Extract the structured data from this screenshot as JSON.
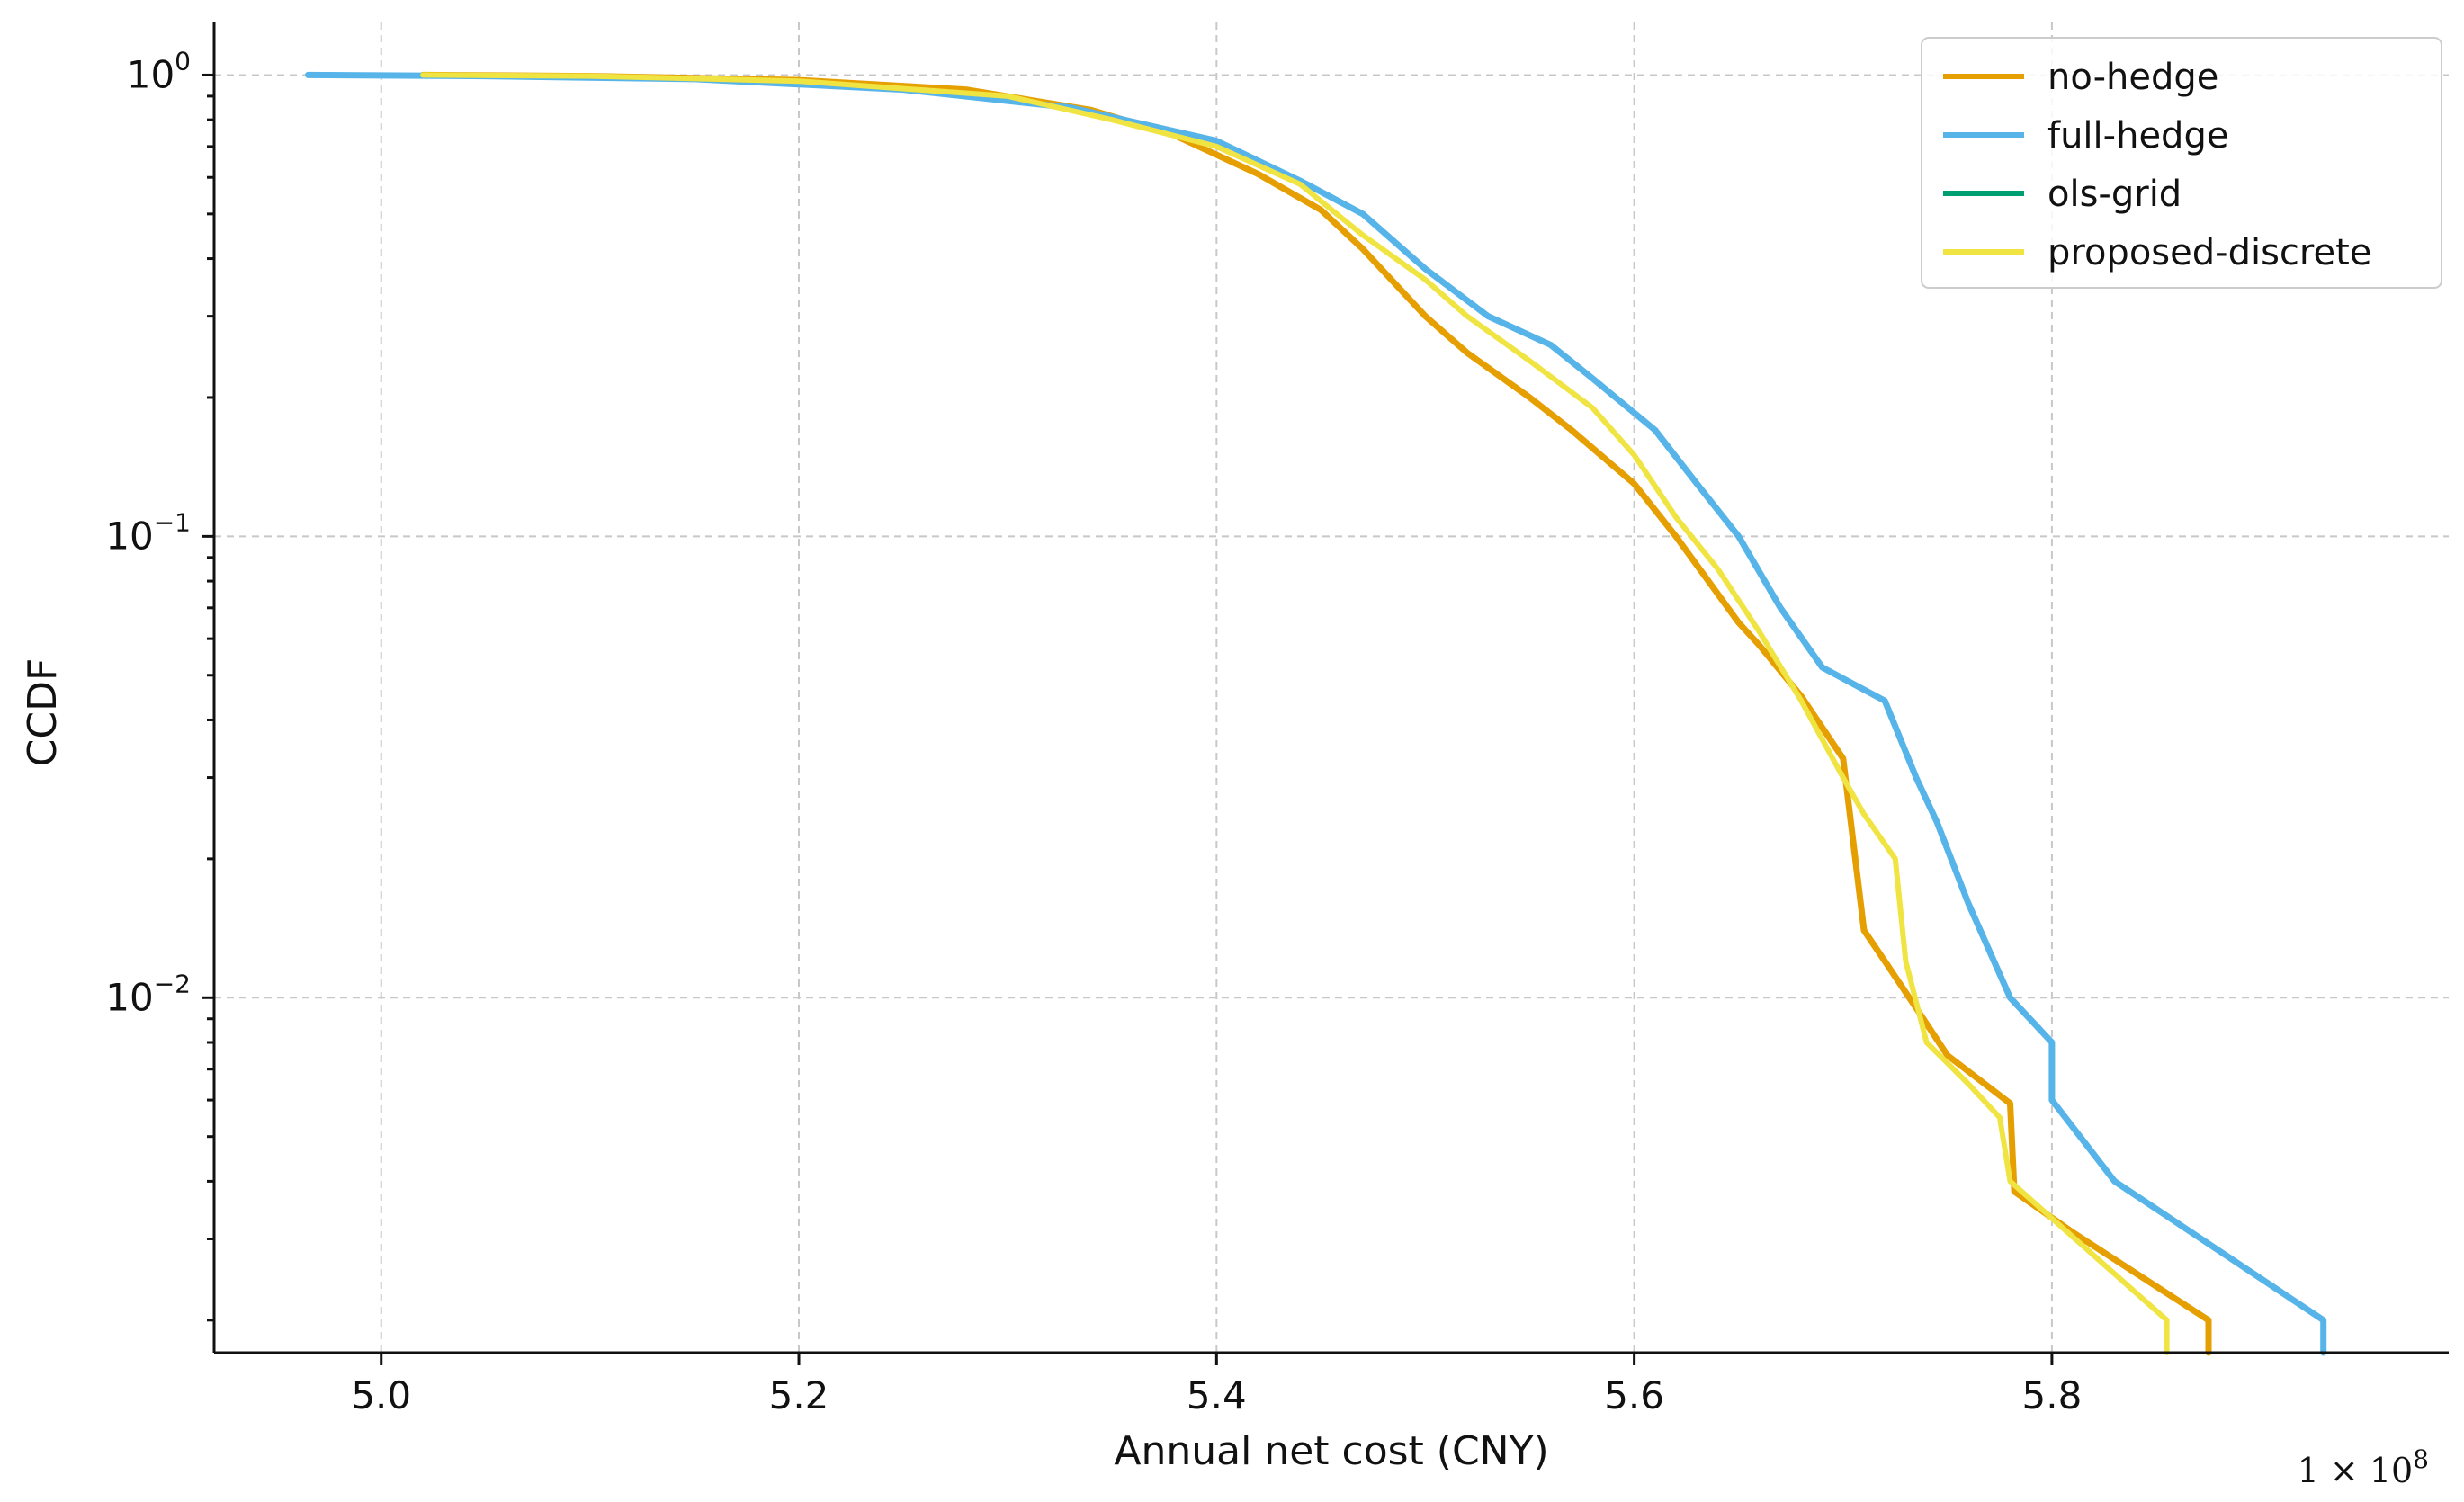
{
  "chart_data": {
    "type": "line",
    "title": "",
    "xlabel": "Annual net cost (CNY)",
    "ylabel": "CCDF",
    "x_offset_text": "1 × 10^8",
    "xscale": "linear",
    "yscale": "log",
    "xlim": [
      4.92,
      5.99
    ],
    "ylim": [
      0.0017,
      1.3
    ],
    "grid": true,
    "legend_position": "top-right",
    "xticks": [
      {
        "value": 5.0,
        "label": "5.0"
      },
      {
        "value": 5.2,
        "label": "5.2"
      },
      {
        "value": 5.4,
        "label": "5.4"
      },
      {
        "value": 5.6,
        "label": "5.6"
      },
      {
        "value": 5.8,
        "label": "5.8"
      }
    ],
    "yticks": [
      {
        "value": 1,
        "base": "10",
        "exp": "0"
      },
      {
        "value": 0.1,
        "base": "10",
        "exp": "−1"
      },
      {
        "value": 0.01,
        "base": "10",
        "exp": "−2"
      }
    ],
    "series": [
      {
        "name": "no-hedge",
        "color": "#e69f00",
        "width": 7,
        "x": [
          5.02,
          5.1,
          5.2,
          5.28,
          5.34,
          5.38,
          5.42,
          5.45,
          5.47,
          5.5,
          5.52,
          5.55,
          5.57,
          5.6,
          5.62,
          5.64,
          5.65,
          5.66,
          5.68,
          5.7,
          5.71,
          5.72,
          5.735,
          5.75,
          5.78,
          5.782,
          5.81,
          5.875,
          5.875
        ],
        "y": [
          1.0,
          0.995,
          0.975,
          0.93,
          0.84,
          0.74,
          0.61,
          0.51,
          0.42,
          0.3,
          0.25,
          0.2,
          0.17,
          0.13,
          0.1,
          0.075,
          0.065,
          0.058,
          0.045,
          0.033,
          0.014,
          0.012,
          0.0095,
          0.0075,
          0.0059,
          0.0038,
          0.0031,
          0.002,
          0.0017
        ]
      },
      {
        "name": "full-hedge",
        "color": "#56b4e9",
        "width": 7,
        "x": [
          4.965,
          5.05,
          5.15,
          5.25,
          5.33,
          5.4,
          5.44,
          5.47,
          5.5,
          5.53,
          5.56,
          5.58,
          5.61,
          5.63,
          5.65,
          5.67,
          5.69,
          5.72,
          5.735,
          5.745,
          5.76,
          5.78,
          5.8,
          5.8,
          5.83,
          5.93,
          5.93
        ],
        "y": [
          1.0,
          0.995,
          0.98,
          0.93,
          0.85,
          0.72,
          0.59,
          0.5,
          0.38,
          0.3,
          0.26,
          0.22,
          0.17,
          0.13,
          0.1,
          0.07,
          0.052,
          0.044,
          0.03,
          0.024,
          0.016,
          0.01,
          0.008,
          0.006,
          0.004,
          0.002,
          0.0017
        ]
      },
      {
        "name": "ols-grid",
        "color": "#009e73",
        "width": 4,
        "x": [
          5.02,
          5.1,
          5.2,
          5.3,
          5.35,
          5.4,
          5.44,
          5.47,
          5.5,
          5.52,
          5.55,
          5.58,
          5.6,
          5.62,
          5.64,
          5.66,
          5.68,
          5.7,
          5.71,
          5.725,
          5.73,
          5.74,
          5.76,
          5.775,
          5.78,
          5.855,
          5.855
        ],
        "y": [
          1.0,
          0.995,
          0.97,
          0.9,
          0.8,
          0.7,
          0.58,
          0.45,
          0.36,
          0.3,
          0.24,
          0.19,
          0.15,
          0.11,
          0.085,
          0.062,
          0.044,
          0.03,
          0.025,
          0.02,
          0.012,
          0.008,
          0.0065,
          0.0055,
          0.004,
          0.002,
          0.0017
        ]
      },
      {
        "name": "proposed-discrete",
        "color": "#f0e442",
        "width": 6,
        "x": [
          5.02,
          5.1,
          5.2,
          5.3,
          5.35,
          5.4,
          5.44,
          5.47,
          5.5,
          5.52,
          5.55,
          5.58,
          5.6,
          5.62,
          5.64,
          5.66,
          5.68,
          5.7,
          5.71,
          5.725,
          5.73,
          5.74,
          5.76,
          5.775,
          5.78,
          5.855,
          5.855
        ],
        "y": [
          1.0,
          0.995,
          0.97,
          0.9,
          0.8,
          0.7,
          0.58,
          0.45,
          0.36,
          0.3,
          0.24,
          0.19,
          0.15,
          0.11,
          0.085,
          0.062,
          0.044,
          0.03,
          0.025,
          0.02,
          0.012,
          0.008,
          0.0065,
          0.0055,
          0.004,
          0.002,
          0.0017
        ]
      }
    ]
  }
}
